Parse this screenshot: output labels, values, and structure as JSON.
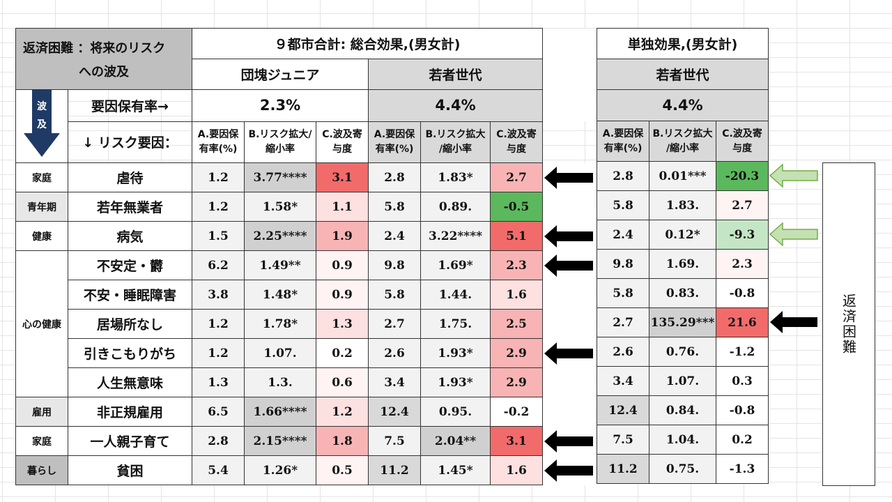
{
  "title_line1": "返済困難 ：将来のリスク",
  "title_line2": "への波及",
  "down_arrow_text": [
    "波",
    "及"
  ],
  "factor_rate_label": "要因保有率→",
  "risk_factor_label": "↓ リスク要因：",
  "main_header": "９都市合計: 総合効果,(男女計)",
  "single_header": "単独効果,(男女計)",
  "groups": [
    {
      "name": "団塊ジュニア",
      "rate": "2.3%"
    },
    {
      "name": "若者世代",
      "rate": "4.4%"
    }
  ],
  "single_group": {
    "name": "若者世代",
    "rate": "4.4%"
  },
  "subheaders": [
    [
      "A.要因保",
      "有率(%)"
    ],
    [
      "B.リスク拡大/",
      "縮小率"
    ],
    [
      "C.波及寄",
      "与度"
    ]
  ],
  "subheaders_young": [
    [
      "A.要因保",
      "有率(%)"
    ],
    [
      "B.リスク拡大",
      "/縮小率"
    ],
    [
      "C.波及寄",
      "与度"
    ]
  ],
  "categories": [
    {
      "label": "家庭",
      "rows": 1
    },
    {
      "label": "青年期",
      "rows": 1
    },
    {
      "label": "健康",
      "rows": 1
    },
    {
      "label": "心の健康",
      "rows": 5
    },
    {
      "label": "雇用",
      "rows": 1
    },
    {
      "label": "家庭",
      "rows": 1
    },
    {
      "label": "暮らし",
      "rows": 1
    }
  ],
  "rows": [
    {
      "item": "虐待",
      "dankai": [
        "1.2",
        "3.77****",
        "3.1"
      ],
      "young": [
        "2.8",
        "1.83*",
        "2.7"
      ],
      "single": [
        "2.8",
        "0.01***",
        "-20.3"
      ]
    },
    {
      "item": "若年無業者",
      "dankai": [
        "1.2",
        "1.58*",
        "1.1"
      ],
      "young": [
        "5.8",
        "0.89.",
        "-0.5"
      ],
      "single": [
        "5.8",
        "1.83.",
        "2.7"
      ]
    },
    {
      "item": "病気",
      "dankai": [
        "1.5",
        "2.25****",
        "1.9"
      ],
      "young": [
        "2.4",
        "3.22****",
        "5.1"
      ],
      "single": [
        "2.4",
        "0.12*",
        "-9.3"
      ]
    },
    {
      "item": "不安定・欝",
      "dankai": [
        "6.2",
        "1.49**",
        "0.9"
      ],
      "young": [
        "9.8",
        "1.69*",
        "2.3"
      ],
      "single": [
        "9.8",
        "1.69.",
        "2.3"
      ]
    },
    {
      "item": "不安・睡眠障害",
      "dankai": [
        "3.8",
        "1.48*",
        "0.9"
      ],
      "young": [
        "5.8",
        "1.44.",
        "1.6"
      ],
      "single": [
        "5.8",
        "0.83.",
        "-0.8"
      ]
    },
    {
      "item": "居場所なし",
      "dankai": [
        "1.2",
        "1.78*",
        "1.3"
      ],
      "young": [
        "2.7",
        "1.75.",
        "2.5"
      ],
      "single": [
        "2.7",
        "135.29***",
        "21.6"
      ]
    },
    {
      "item": "引きこもりがち",
      "dankai": [
        "1.2",
        "1.07.",
        "0.2"
      ],
      "young": [
        "2.6",
        "1.93*",
        "2.9"
      ],
      "single": [
        "2.6",
        "0.76.",
        "-1.2"
      ]
    },
    {
      "item": "人生無意味",
      "dankai": [
        "1.3",
        "1.3.",
        "0.6"
      ],
      "young": [
        "3.4",
        "1.93*",
        "2.9"
      ],
      "single": [
        "3.4",
        "1.07.",
        "0.3"
      ]
    },
    {
      "item": "非正規雇用",
      "dankai": [
        "6.5",
        "1.66****",
        "1.2"
      ],
      "young": [
        "12.4",
        "0.95.",
        "-0.2"
      ],
      "single": [
        "12.4",
        "0.84.",
        "-0.8"
      ]
    },
    {
      "item": "一人親子育て",
      "dankai": [
        "2.8",
        "2.15****",
        "1.8"
      ],
      "young": [
        "7.5",
        "2.04**",
        "3.1"
      ],
      "single": [
        "7.5",
        "1.04.",
        "0.2"
      ]
    },
    {
      "item": "貧困",
      "dankai": [
        "5.4",
        "1.26*",
        "0.5"
      ],
      "young": [
        "11.2",
        "1.45*",
        "1.6"
      ],
      "single": [
        "11.2",
        "0.75.",
        "-1.3"
      ]
    }
  ],
  "colors": {
    "strong_red": "#f26b6b",
    "mid_red": "#f8b4b4",
    "light_red": "#fde0e0",
    "faint_red": "#fff3f3",
    "strong_green": "#5cb85c",
    "light_green": "#c5e6c5",
    "arrow_black": "#000000",
    "arrow_green_fill": "#c5e0b3",
    "arrow_green_stroke": "#70ad47"
  },
  "black_arrow_rows": [
    0,
    2,
    3,
    6,
    9,
    10
  ],
  "right_side_arrows": [
    {
      "row": 0,
      "style": "green"
    },
    {
      "row": 2,
      "style": "green"
    },
    {
      "row": 5,
      "style": "black"
    }
  ],
  "repay_label": "返済困難"
}
